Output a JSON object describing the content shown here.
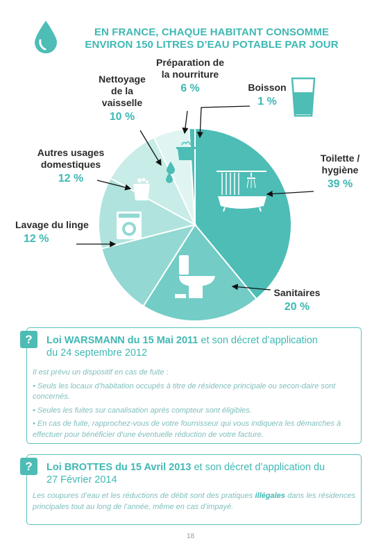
{
  "header": {
    "title_line1": "EN FRANCE, CHAQUE HABITANT CONSOMME",
    "title_line2": "ENVIRON 150 LITRES D’EAU POTABLE PAR JOUR"
  },
  "chart_data": {
    "type": "pie",
    "categories": [
      "Toilette / hygiène",
      "Sanitaires",
      "Lavage du linge",
      "Autres usages domestiques",
      "Nettoyage de la vaisselle",
      "Préparation de la nourriture",
      "Boisson"
    ],
    "values": [
      39,
      20,
      12,
      12,
      10,
      6,
      1
    ],
    "unit": "%",
    "colors": [
      "#4dbdb6",
      "#73ccc6",
      "#93d8d2",
      "#b0e3de",
      "#c8ece8",
      "#e0f5f2",
      "#4dbdb6"
    ]
  },
  "labels": {
    "boisson": {
      "name": "Boisson",
      "pct": "1 %"
    },
    "preparation": {
      "line1": "Préparation de",
      "line2": "la nourriture",
      "pct": "6 %"
    },
    "vaisselle": {
      "line1": "Nettoyage",
      "line2": "de la",
      "line3": "vaisselle",
      "pct": "10 %"
    },
    "autres": {
      "line1": "Autres usages",
      "line2": "domestiques",
      "pct": "12 %"
    },
    "linge": {
      "name": "Lavage du linge",
      "pct": "12 %"
    },
    "sanitaires": {
      "name": "Sanitaires",
      "pct": "20 %"
    },
    "toilette": {
      "line1": "Toilette /",
      "line2": "hygiène",
      "pct": "39 %"
    }
  },
  "law1": {
    "qmark": "?",
    "title_bold": "Loi WARSMANN du 15 Mai 2011",
    "title_rest": " et son décret d’application",
    "title_line2": "du 24 septembre 2012",
    "intro": "Il est prévu un dispositif en cas de fuite :",
    "bullets": [
      "• Seuls les locaux d’habitation occupés à titre de résidence principale ou secon-daire sont concernés.",
      "• Seules les fuites sur canalisation après compteur sont éligibles.",
      "• En cas de fuite, rapprochez-vous de votre fournisseur qui vous indiquera les démarches à effectuer pour bénéficier d’une éventuelle réduction de votre facture."
    ]
  },
  "law2": {
    "qmark": "?",
    "title_bold": "Loi BROTTES du 15 Avril 2013",
    "title_rest": " et son décret d’application du",
    "title_line2": "27 Février 2014",
    "text_before": "Les coupures d’eau et les réductions de débit sont des pratiques ",
    "text_bold": "illégales",
    "text_after": " dans les résidences principales tout au long de l’année, même en cas d’impayé."
  },
  "footer": {
    "page_number": "18"
  }
}
